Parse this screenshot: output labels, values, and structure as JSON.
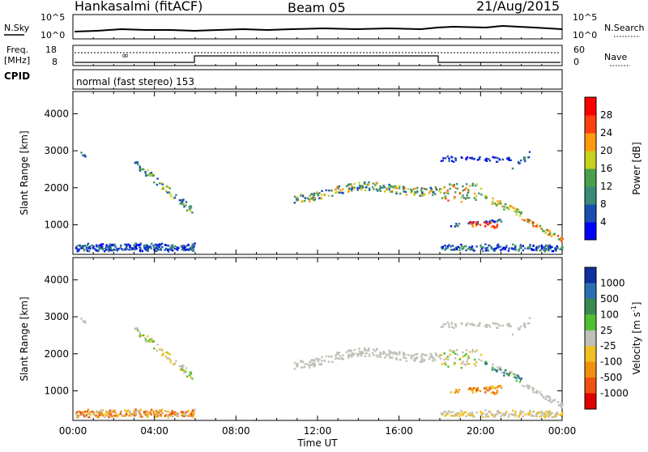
{
  "header": {
    "station": "Hankasalmi (fitACF)",
    "beam": "Beam 05",
    "date": "21/Aug/2015"
  },
  "top_panel": {
    "left_label": "N.Sky",
    "left_ticks": [
      "10^5",
      "10^0"
    ],
    "right_label": "N.Search",
    "right_ticks": [
      "10^5",
      "10^0"
    ]
  },
  "freq_panel": {
    "label_freq": "Freq.",
    "label_unit": "[MHz]",
    "left_ticks": [
      "18",
      "8"
    ],
    "right_ticks": [
      "60",
      "0"
    ],
    "right_label": "Nave"
  },
  "cpid": {
    "label": "CPID",
    "text": "normal (fast stereo) 153"
  },
  "chart_data": [
    {
      "type": "heatmap",
      "name": "power",
      "ylabel": "Slant Range [km]",
      "xlabel": "Time UT",
      "yticks": [
        "1000",
        "2000",
        "3000",
        "4000"
      ],
      "ylim": [
        200,
        4600
      ],
      "xlim": [
        0,
        24
      ],
      "colorbar": {
        "label": "Power [dB]",
        "ticks": [
          "4",
          "8",
          "12",
          "16",
          "20",
          "24",
          "28"
        ],
        "colors": [
          "#0000ff",
          "#1a4fb0",
          "#3a8a78",
          "#4aa04a",
          "#c8d020",
          "#ff9a10",
          "#ff4010",
          "#ff0000"
        ]
      }
    },
    {
      "type": "heatmap",
      "name": "velocity",
      "ylabel": "Slant Range [km]",
      "xlabel": "Time UT",
      "yticks": [
        "1000",
        "2000",
        "3000",
        "4000"
      ],
      "ylim": [
        200,
        4600
      ],
      "xlim": [
        0,
        24
      ],
      "xticks": [
        "00:00",
        "04:00",
        "08:00",
        "12:00",
        "16:00",
        "20:00",
        "00:00"
      ],
      "colorbar": {
        "label": "Velocity [m s",
        "label_sup": "-1",
        "label_end": "]",
        "ticks": [
          "1000",
          "500",
          "100",
          "25",
          "-25",
          "-100",
          "-500",
          "-1000"
        ],
        "colors": [
          "#1030a0",
          "#2a70b0",
          "#3a8a50",
          "#50c030",
          "#c0c0b8",
          "#f0c020",
          "#f09010",
          "#f05010",
          "#e00000"
        ]
      }
    }
  ]
}
